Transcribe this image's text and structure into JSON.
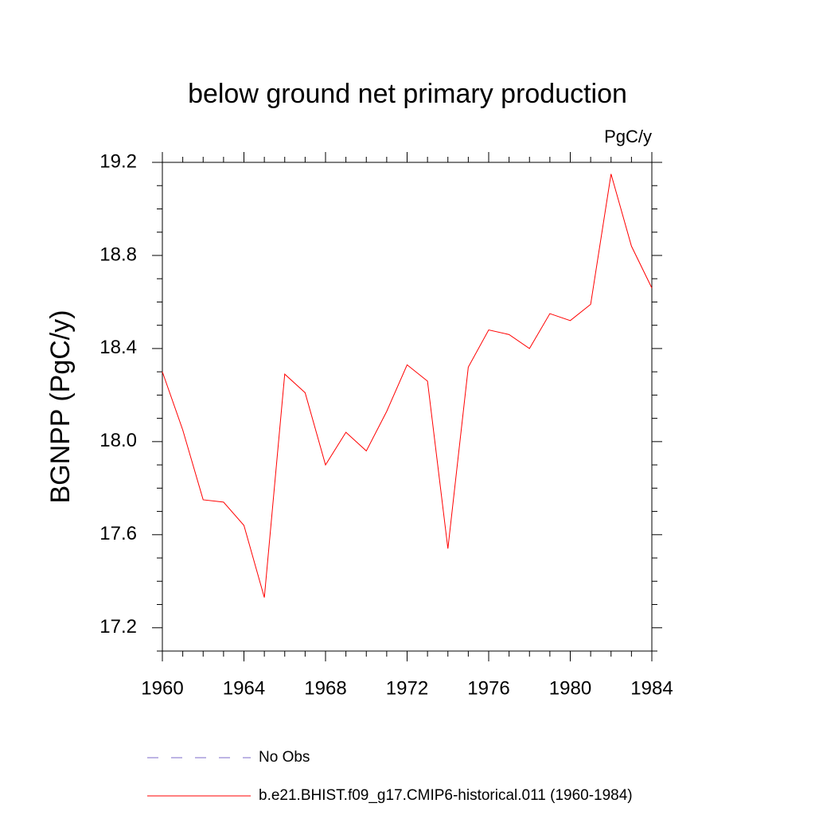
{
  "chart_data": {
    "type": "line",
    "title": "below ground net primary production",
    "units": "PgC/y",
    "y_label": "BGNPP  (PgC/y)",
    "obs_label": "No Obs",
    "obs_color": "#7b68c8",
    "x": [
      1960,
      1961,
      1962,
      1963,
      1964,
      1965,
      1966,
      1967,
      1968,
      1969,
      1970,
      1971,
      1972,
      1973,
      1974,
      1975,
      1976,
      1977,
      1978,
      1979,
      1980,
      1981,
      1982,
      1983,
      1984
    ],
    "series": [
      {
        "name": "b.e21.BHIST.f09_g17.CMIP6-historical.011 (1960-1984)",
        "color": "#ff0000",
        "values": [
          18.3,
          18.05,
          17.75,
          17.74,
          17.64,
          17.33,
          18.29,
          18.21,
          17.9,
          18.04,
          17.96,
          18.13,
          18.33,
          18.26,
          17.54,
          18.32,
          18.48,
          18.46,
          18.4,
          18.55,
          18.52,
          18.59,
          19.15,
          18.84,
          18.66
        ]
      }
    ],
    "xlim": [
      1960,
      1984
    ],
    "xticks": [
      1960,
      1964,
      1968,
      1972,
      1976,
      1980,
      1984
    ],
    "xminorticks": [
      1961,
      1962,
      1963,
      1965,
      1966,
      1967,
      1969,
      1970,
      1971,
      1973,
      1974,
      1975,
      1977,
      1978,
      1979,
      1981,
      1982,
      1983
    ],
    "ylim": [
      17.1,
      19.2
    ],
    "yticks": [
      {
        "value": 17.2,
        "label": "17.2"
      },
      {
        "value": 17.6,
        "label": "17.6"
      },
      {
        "value": 18.0,
        "label": "18.0"
      },
      {
        "value": 18.4,
        "label": "18.4"
      },
      {
        "value": 18.8,
        "label": "18.8"
      },
      {
        "value": 19.2,
        "label": "19.2"
      }
    ],
    "yminorticks": [
      17.1,
      17.3,
      17.4,
      17.5,
      17.7,
      17.8,
      17.9,
      18.1,
      18.2,
      18.3,
      18.5,
      18.6,
      18.7,
      18.9,
      19.0,
      19.1
    ]
  }
}
